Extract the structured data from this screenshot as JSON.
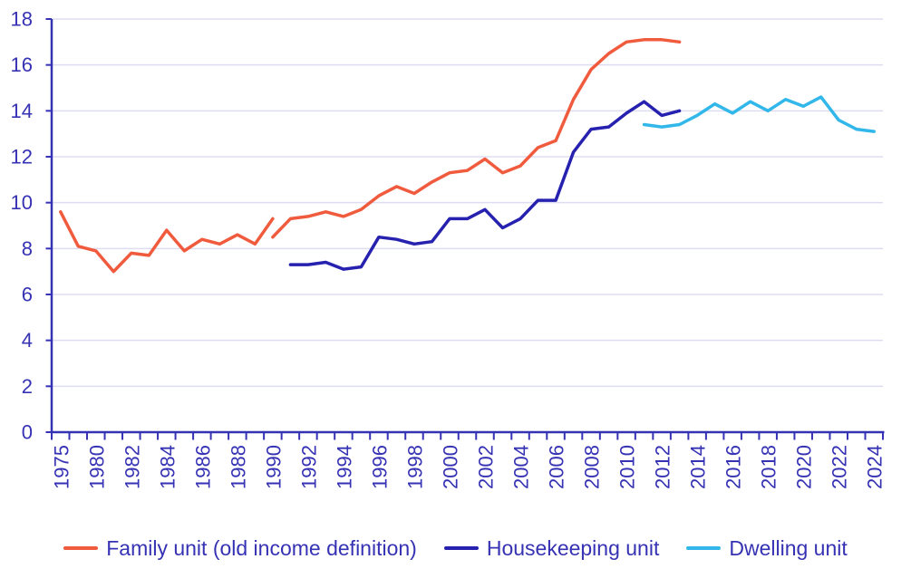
{
  "page": {
    "background": "#FFFFFF"
  },
  "colors": {
    "axis": "#3632B4",
    "tick_label": "#3632B4",
    "grid": "#DDDDF2",
    "family_unit": "#F05B3E",
    "housekeeping_unit": "#2621AE",
    "dwelling_unit": "#31B7E9",
    "background": "#FFFFFF"
  },
  "chart_data": {
    "type": "line",
    "title": "",
    "grid": "horizontal",
    "legend_position": "bottom",
    "y_axis": {
      "min": 0,
      "max": 18,
      "tick_step": 2,
      "tick_labels": [
        "0",
        "2",
        "4",
        "6",
        "8",
        "10",
        "12",
        "14",
        "16",
        "18"
      ]
    },
    "x_axis": {
      "categories_count": 47,
      "note": "categorical axis: first category 1975, second category unlabeled, then annual categories 1980-2024; tick marks at category boundaries, labels rotated 90° CCW",
      "tick_labels": [
        "1975",
        "1980",
        "1982",
        "1984",
        "1986",
        "1988",
        "1990",
        "1992",
        "1994",
        "1996",
        "1998",
        "2000",
        "2002",
        "2004",
        "2006",
        "2008",
        "2010",
        "2012",
        "2014",
        "2016",
        "2018",
        "2020",
        "2022",
        "2024"
      ],
      "tick_label_indices": [
        0,
        2,
        4,
        6,
        8,
        10,
        12,
        14,
        16,
        18,
        20,
        22,
        24,
        26,
        28,
        30,
        32,
        34,
        36,
        38,
        40,
        42,
        44,
        46
      ]
    },
    "series": [
      {
        "name": "Family unit (old income definition)",
        "color": "#F05B3E",
        "segments": [
          {
            "years": [
              "1975",
              null,
              "1980",
              "1981",
              "1982",
              "1983",
              "1984",
              "1985",
              "1986",
              "1987",
              "1988",
              "1989",
              "1990"
            ],
            "x_indices": [
              0,
              1,
              2,
              3,
              4,
              5,
              6,
              7,
              8,
              9,
              10,
              11,
              12
            ],
            "values": [
              9.6,
              8.1,
              7.9,
              7.0,
              7.8,
              7.7,
              8.8,
              7.9,
              8.4,
              8.2,
              8.6,
              8.2,
              9.3
            ]
          },
          {
            "years": [
              "1990",
              "1991",
              "1992",
              "1993",
              "1994",
              "1995",
              "1996",
              "1997",
              "1998",
              "1999",
              "2000",
              "2001",
              "2002",
              "2003",
              "2004",
              "2005",
              "2006",
              "2007",
              "2008",
              "2009",
              "2010",
              "2011",
              "2012",
              "2013"
            ],
            "x_indices": [
              12,
              13,
              14,
              15,
              16,
              17,
              18,
              19,
              20,
              21,
              22,
              23,
              24,
              25,
              26,
              27,
              28,
              29,
              30,
              31,
              32,
              33,
              34,
              35
            ],
            "values": [
              8.5,
              9.3,
              9.4,
              9.6,
              9.4,
              9.7,
              10.3,
              10.7,
              10.4,
              10.9,
              11.3,
              11.4,
              11.9,
              11.3,
              11.6,
              12.4,
              12.7,
              14.5,
              15.8,
              16.5,
              17.0,
              17.1,
              17.1,
              17.0
            ]
          }
        ]
      },
      {
        "name": "Housekeeping unit",
        "color": "#2621AE",
        "segments": [
          {
            "years": [
              "1991",
              "1992",
              "1993",
              "1994",
              "1995",
              "1996",
              "1997",
              "1998",
              "1999",
              "2000",
              "2001",
              "2002",
              "2003",
              "2004",
              "2005",
              "2006",
              "2007",
              "2008",
              "2009",
              "2010",
              "2011",
              "2012",
              "2013"
            ],
            "x_indices": [
              13,
              14,
              15,
              16,
              17,
              18,
              19,
              20,
              21,
              22,
              23,
              24,
              25,
              26,
              27,
              28,
              29,
              30,
              31,
              32,
              33,
              34,
              35
            ],
            "values": [
              7.3,
              7.3,
              7.4,
              7.1,
              7.2,
              8.5,
              8.4,
              8.2,
              8.3,
              9.3,
              9.3,
              9.7,
              8.9,
              9.3,
              10.1,
              10.1,
              12.2,
              13.2,
              13.3,
              13.9,
              14.4,
              13.8,
              14.0
            ]
          }
        ]
      },
      {
        "name": "Dwelling unit",
        "color": "#31B7E9",
        "segments": [
          {
            "years": [
              "2011",
              "2012",
              "2013",
              "2014",
              "2015",
              "2016",
              "2017",
              "2018",
              "2019",
              "2020",
              "2021",
              "2022",
              "2023",
              "2024"
            ],
            "x_indices": [
              33,
              34,
              35,
              36,
              37,
              38,
              39,
              40,
              41,
              42,
              43,
              44,
              45,
              46
            ],
            "values": [
              13.4,
              13.3,
              13.4,
              13.8,
              14.3,
              13.9,
              14.4,
              14.0,
              14.5,
              14.2,
              14.6,
              13.6,
              13.2,
              13.1
            ]
          }
        ]
      }
    ]
  }
}
